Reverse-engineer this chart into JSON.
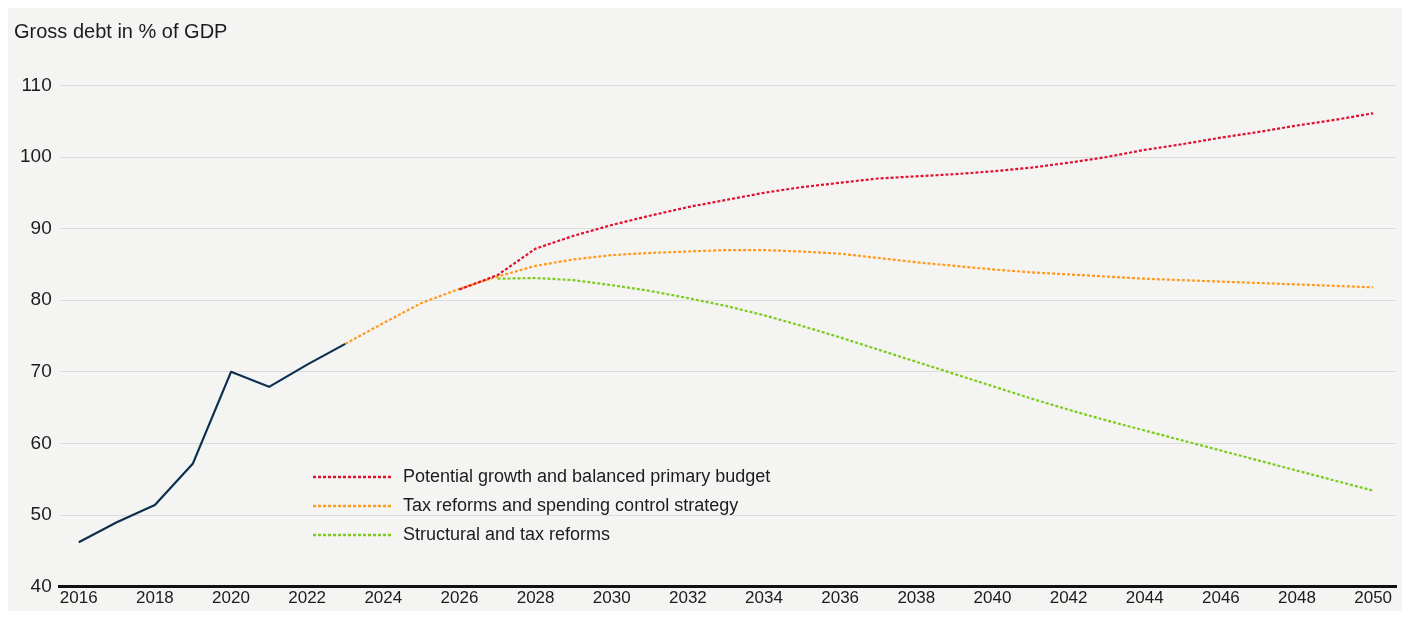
{
  "chart_data": {
    "type": "line",
    "ylabel": "Gross debt in % of GDP",
    "xlim": [
      2015.5,
      2050.6
    ],
    "xticks": [
      2016,
      2018,
      2020,
      2022,
      2024,
      2026,
      2028,
      2030,
      2032,
      2034,
      2036,
      2038,
      2040,
      2042,
      2044,
      2046,
      2048,
      2050
    ],
    "ylim": [
      40,
      110
    ],
    "yticks": [
      40,
      50,
      60,
      70,
      80,
      90,
      100,
      110
    ],
    "grid": "y",
    "legend": "bottom left",
    "marker": "none",
    "series": [
      {
        "color": "#0d2f4f",
        "line_style": "solid",
        "x": [
          2016,
          2017,
          2018,
          2019,
          2020,
          2021,
          2022,
          2023
        ],
        "values": [
          46.2,
          49.0,
          51.4,
          57.2,
          70.0,
          67.9,
          71.0,
          73.9
        ]
      },
      {
        "name": "Potential growth and balanced primary budget",
        "color": "#e0102f",
        "line_style": "dashed",
        "x": [
          2026,
          2027,
          2028,
          2029,
          2030,
          2031,
          2032,
          2033,
          2034,
          2035,
          2036,
          2037,
          2038,
          2039,
          2040,
          2041,
          2042,
          2043,
          2044,
          2045,
          2046,
          2047,
          2048,
          2049,
          2050
        ],
        "values": [
          81.5,
          83.5,
          87.2,
          89,
          90.5,
          91.8,
          93,
          94,
          95,
          95.8,
          96.4,
          97,
          97.3,
          97.6,
          98,
          98.5,
          99.2,
          100,
          101,
          101.8,
          102.7,
          103.5,
          104.4,
          105.2,
          106.1
        ]
      },
      {
        "name": "Tax reforms and spending control strategy",
        "color": "#ff9a1a",
        "line_style": "dashed",
        "x": [
          2023,
          2024,
          2025,
          2026,
          2027,
          2028,
          2029,
          2030,
          2031,
          2032,
          2033,
          2034,
          2035,
          2036,
          2037,
          2038,
          2039,
          2040,
          2041,
          2042,
          2043,
          2044,
          2045,
          2046,
          2047,
          2048,
          2049,
          2050
        ],
        "values": [
          73.9,
          76.8,
          79.6,
          81.6,
          83.3,
          84.8,
          85.7,
          86.3,
          86.6,
          86.8,
          87,
          87,
          86.8,
          86.5,
          85.9,
          85.3,
          84.8,
          84.3,
          83.9,
          83.6,
          83.3,
          83,
          82.8,
          82.6,
          82.4,
          82.2,
          82,
          81.8
        ]
      },
      {
        "name": "Structural and tax reforms",
        "color": "#7ccc1e",
        "line_style": "dashed",
        "x": [
          2027,
          2028,
          2029,
          2030,
          2031,
          2032,
          2033,
          2034,
          2035,
          2036,
          2037,
          2038,
          2039,
          2040,
          2041,
          2042,
          2043,
          2044,
          2045,
          2046,
          2047,
          2048,
          2049,
          2050
        ],
        "values": [
          83,
          83.1,
          82.8,
          82.1,
          81.3,
          80.3,
          79.2,
          77.9,
          76.4,
          74.8,
          73.1,
          71.4,
          69.7,
          68,
          66.3,
          64.7,
          63.2,
          61.8,
          60.4,
          59,
          57.6,
          56.2,
          54.8,
          53.4
        ]
      }
    ]
  }
}
